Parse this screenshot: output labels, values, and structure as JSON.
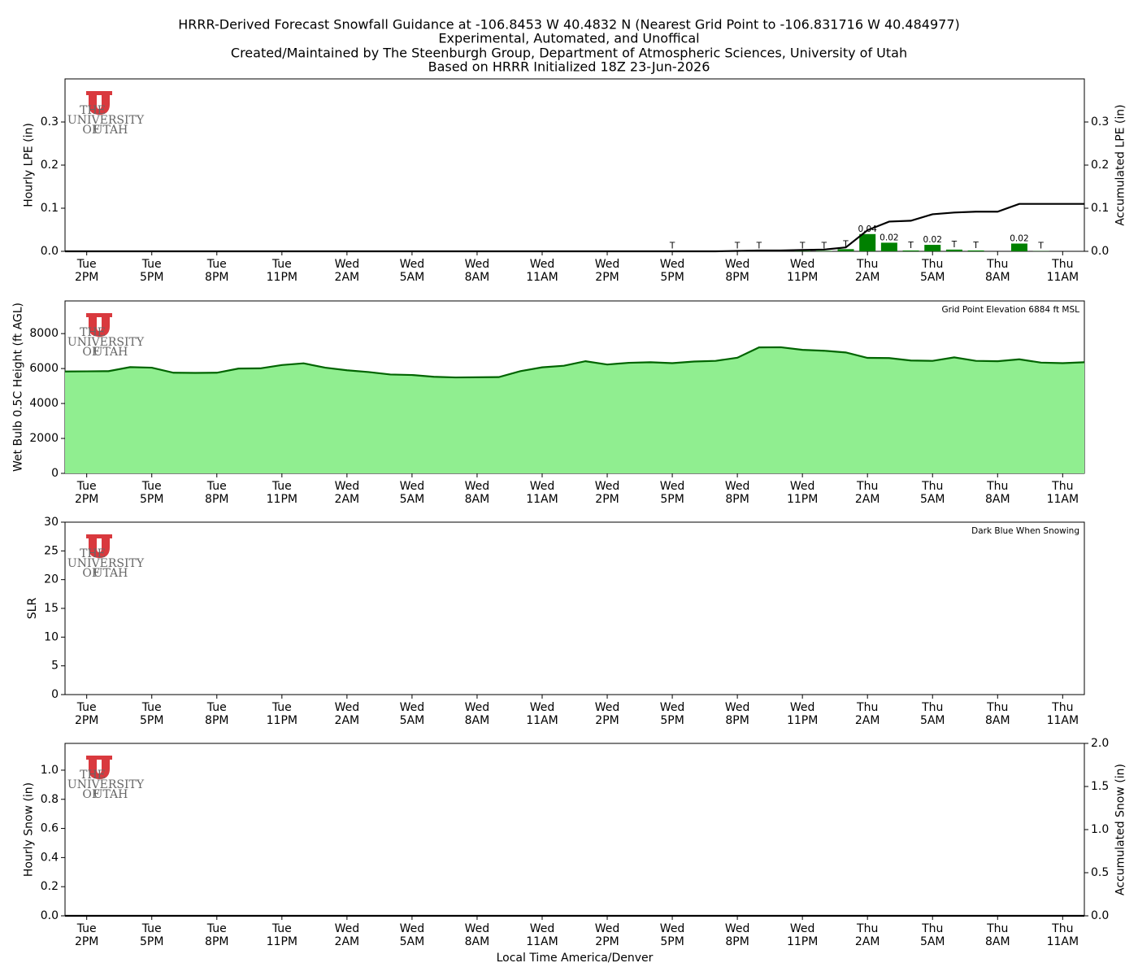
{
  "title": [
    "HRRR-Derived Forecast Snowfall Guidance at -106.8453 W 40.4832 N (Nearest Grid Point to -106.831716 W 40.484977)",
    "Experimental, Automated, and Unoffical",
    "Created/Maintained by The Steenburgh Group, Department of Atmospheric Sciences, University of Utah",
    "Based on HRRR Initialized 18Z 23-Jun-2026"
  ],
  "xlabel": "Local Time America/Denver",
  "logo": [
    "THE",
    "UNIVERSITY",
    "OF",
    "UTAH"
  ],
  "chart_data": [
    {
      "type": "bar",
      "ylabel": "Hourly LPE (in)",
      "y2label": "Accumulated LPE (in)",
      "categories": [
        null,
        "Tue 2PM",
        null,
        null,
        "Tue 5PM",
        null,
        null,
        "Tue 8PM",
        null,
        null,
        "Tue 11PM",
        null,
        null,
        "Wed 2AM",
        null,
        null,
        "Wed 5AM",
        null,
        null,
        "Wed 8AM",
        null,
        null,
        "Wed 11AM",
        null,
        null,
        "Wed 2PM",
        null,
        null,
        "Wed 5PM",
        null,
        null,
        "Wed 8PM",
        null,
        null,
        "Wed 11PM",
        null,
        null,
        "Thu 2AM",
        null,
        null,
        "Thu 5AM",
        null,
        null,
        "Thu 8AM",
        null,
        null,
        "Thu 11AM",
        null
      ],
      "ylim": [
        0,
        0.4
      ],
      "yticks": [
        {
          "value": 0,
          "label": "0.0"
        },
        0.1,
        0.2,
        0.3
      ],
      "y2lim": [
        0,
        0.4
      ],
      "y2ticks": [
        {
          "value": 0,
          "label": "0.0"
        },
        0.1,
        0.2,
        0.3
      ],
      "series": [
        {
          "type": "bar",
          "color": "#008000",
          "values": [
            0,
            0,
            0,
            0,
            0,
            0,
            0,
            0,
            0,
            0,
            0,
            0,
            0,
            0,
            0,
            0,
            0,
            0,
            0,
            0,
            0,
            0,
            0,
            0,
            0,
            0,
            0,
            0,
            0.0005,
            0,
            0,
            0.001,
            0.001,
            0,
            0.001,
            0.001,
            0.005,
            0.04,
            0.02,
            0.002,
            0.015,
            0.004,
            0.002,
            0,
            0.018,
            0.0005,
            0,
            0
          ],
          "value_labels": [
            null,
            null,
            null,
            null,
            null,
            null,
            null,
            null,
            null,
            null,
            null,
            null,
            null,
            null,
            null,
            null,
            null,
            null,
            null,
            null,
            null,
            null,
            null,
            null,
            null,
            null,
            null,
            null,
            "T",
            null,
            null,
            "T",
            "T",
            null,
            "T",
            "T",
            "T",
            "0.04",
            "0.02",
            "T",
            "0.02",
            "T",
            "T",
            null,
            "0.02",
            "T",
            null,
            null
          ]
        },
        {
          "type": "line",
          "axis": "y2",
          "color": "#000000",
          "values": [
            0,
            0,
            0,
            0,
            0,
            0,
            0,
            0,
            0,
            0,
            0,
            0,
            0,
            0,
            0,
            0,
            0,
            0,
            0,
            0,
            0,
            0,
            0,
            0,
            0,
            0,
            0,
            0,
            0,
            0,
            0,
            0.001,
            0.002,
            0.002,
            0.003,
            0.004,
            0.009,
            0.049,
            0.069,
            0.071,
            0.086,
            0.09,
            0.092,
            0.092,
            0.11,
            0.11,
            0.11,
            0.11
          ]
        }
      ]
    },
    {
      "type": "area",
      "ylabel": "Wet Bulb 0.5C Height (ft AGL)",
      "annotation": "Grid Point Elevation 6884 ft MSL",
      "categories": [
        null,
        "Tue 2PM",
        null,
        null,
        "Tue 5PM",
        null,
        null,
        "Tue 8PM",
        null,
        null,
        "Tue 11PM",
        null,
        null,
        "Wed 2AM",
        null,
        null,
        "Wed 5AM",
        null,
        null,
        "Wed 8AM",
        null,
        null,
        "Wed 11AM",
        null,
        null,
        "Wed 2PM",
        null,
        null,
        "Wed 5PM",
        null,
        null,
        "Wed 8PM",
        null,
        null,
        "Wed 11PM",
        null,
        null,
        "Thu 2AM",
        null,
        null,
        "Thu 5AM",
        null,
        null,
        "Thu 8AM",
        null,
        null,
        "Thu 11AM",
        null
      ],
      "ylim": [
        0,
        9870
      ],
      "yticks": [
        0,
        2000,
        4000,
        6000,
        8000
      ],
      "series": [
        {
          "type": "area",
          "color": "#006400",
          "fill": "#90ee90",
          "values": [
            5830,
            5840,
            5850,
            6080,
            6050,
            5760,
            5750,
            5760,
            6000,
            6010,
            6200,
            6300,
            6050,
            5900,
            5800,
            5660,
            5630,
            5530,
            5490,
            5500,
            5510,
            5850,
            6070,
            6160,
            6420,
            6230,
            6330,
            6360,
            6310,
            6400,
            6440,
            6620,
            7210,
            7220,
            7070,
            7020,
            6920,
            6610,
            6600,
            6460,
            6440,
            6640,
            6440,
            6420,
            6530,
            6340,
            6310,
            6360
          ]
        }
      ]
    },
    {
      "type": "line",
      "ylabel": "SLR",
      "annotation": "Dark Blue When Snowing",
      "categories": [
        null,
        "Tue 2PM",
        null,
        null,
        "Tue 5PM",
        null,
        null,
        "Tue 8PM",
        null,
        null,
        "Tue 11PM",
        null,
        null,
        "Wed 2AM",
        null,
        null,
        "Wed 5AM",
        null,
        null,
        "Wed 8AM",
        null,
        null,
        "Wed 11AM",
        null,
        null,
        "Wed 2PM",
        null,
        null,
        "Wed 5PM",
        null,
        null,
        "Wed 8PM",
        null,
        null,
        "Wed 11PM",
        null,
        null,
        "Thu 2AM",
        null,
        null,
        "Thu 5AM",
        null,
        null,
        "Thu 8AM",
        null,
        null,
        "Thu 11AM",
        null
      ],
      "ylim": [
        0,
        30
      ],
      "yticks": [
        0,
        5,
        10,
        15,
        20,
        25,
        30
      ],
      "series": []
    },
    {
      "type": "bar",
      "ylabel": "Hourly Snow (in)",
      "y2label": "Accumulated Snow (in)",
      "categories": [
        null,
        "Tue 2PM",
        null,
        null,
        "Tue 5PM",
        null,
        null,
        "Tue 8PM",
        null,
        null,
        "Tue 11PM",
        null,
        null,
        "Wed 2AM",
        null,
        null,
        "Wed 5AM",
        null,
        null,
        "Wed 8AM",
        null,
        null,
        "Wed 11AM",
        null,
        null,
        "Wed 2PM",
        null,
        null,
        "Wed 5PM",
        null,
        null,
        "Wed 8PM",
        null,
        null,
        "Wed 11PM",
        null,
        null,
        "Thu 2AM",
        null,
        null,
        "Thu 5AM",
        null,
        null,
        "Thu 8AM",
        null,
        null,
        "Thu 11AM",
        null
      ],
      "ylim": [
        0,
        1.184
      ],
      "yticks": [
        {
          "value": 0,
          "label": "0.0"
        },
        0.2,
        0.4,
        0.6,
        0.8,
        {
          "value": 1,
          "label": "1.0"
        }
      ],
      "y2lim": [
        0,
        2
      ],
      "y2ticks": [
        {
          "value": 0,
          "label": "0.0"
        },
        0.5,
        {
          "value": 1,
          "label": "1.0"
        },
        1.5,
        {
          "value": 2,
          "label": "2.0"
        }
      ],
      "series": [
        {
          "type": "bar",
          "color": "#1f3fbf",
          "values": [
            0,
            0,
            0,
            0,
            0,
            0,
            0,
            0,
            0,
            0,
            0,
            0,
            0,
            0,
            0,
            0,
            0,
            0,
            0,
            0,
            0,
            0,
            0,
            0,
            0,
            0,
            0,
            0,
            0,
            0,
            0,
            0,
            0,
            0,
            0,
            0,
            0,
            0,
            0,
            0,
            0,
            0,
            0,
            0,
            0,
            0,
            0,
            0
          ]
        },
        {
          "type": "line",
          "axis": "y2",
          "color": "#000000",
          "values": [
            0,
            0,
            0,
            0,
            0,
            0,
            0,
            0,
            0,
            0,
            0,
            0,
            0,
            0,
            0,
            0,
            0,
            0,
            0,
            0,
            0,
            0,
            0,
            0,
            0,
            0,
            0,
            0,
            0,
            0,
            0,
            0,
            0,
            0,
            0,
            0,
            0,
            0,
            0,
            0,
            0,
            0,
            0,
            0,
            0,
            0,
            0,
            0
          ]
        }
      ]
    }
  ]
}
